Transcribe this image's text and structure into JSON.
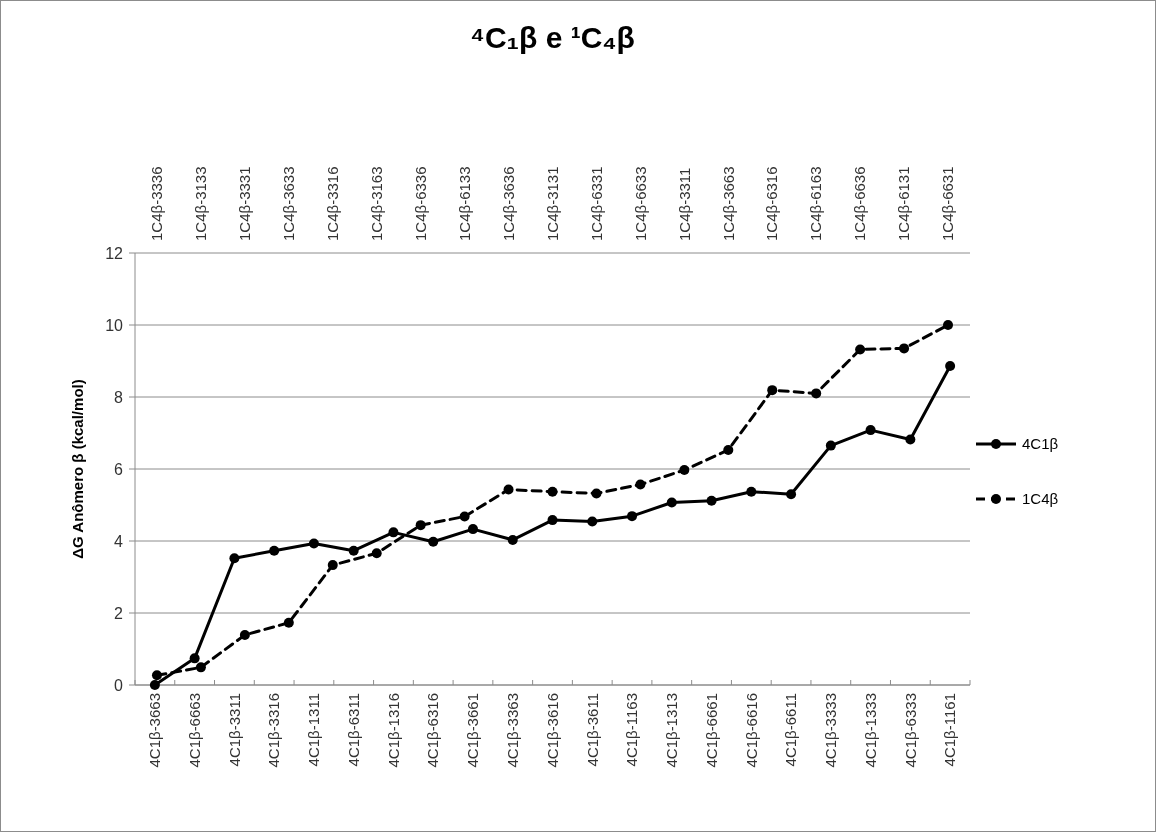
{
  "chart_data": [
    {
      "type": "line",
      "title": "⁴C₁β e ¹C₄β",
      "ylabel": "ΔG Anômero β (kcal/mol)",
      "categories": [
        "4C1β-3663",
        "4C1β-6663",
        "4C1β-3311",
        "4C1β-3316",
        "4C1β-1311",
        "4C1β-6311",
        "4C1β-1316",
        "4C1β-6316",
        "4C1β-3661",
        "4C1β-3363",
        "4C1β-3616",
        "4C1β-3611",
        "4C1β-1163",
        "4C1β-1313",
        "4C1β-6661",
        "4C1β-6616",
        "4C1β-6611",
        "4C1β-3333",
        "4C1β-1333",
        "4C1β-6333",
        "4C1β-1161"
      ],
      "series": [
        {
          "name": "4C1β",
          "color": "#000000",
          "line_style": "solid",
          "values": [
            0.0,
            0.74,
            3.52,
            3.73,
            3.93,
            3.73,
            4.24,
            3.98,
            4.33,
            4.03,
            4.58,
            4.54,
            4.69,
            5.07,
            5.12,
            5.37,
            5.3,
            6.65,
            7.08,
            6.82,
            8.86
          ]
        }
      ],
      "ylim": [
        0,
        12
      ],
      "yticks": [
        0,
        2,
        4,
        6,
        8,
        10,
        12
      ],
      "grid": "y",
      "legend": "right",
      "marker": "circle"
    },
    {
      "type": "line",
      "categories": [
        "1C4β-3336",
        "1C4β-3133",
        "1C4β-3331",
        "1C4β-3633",
        "1C4β-3316",
        "1C4β-3163",
        "1C4β-6336",
        "1C4β-6133",
        "1C4β-3636",
        "1C4β-3131",
        "1C4β-6331",
        "1C4β-6633",
        "1C4β-3311",
        "1C4β-3663",
        "1C4β-6316",
        "1C4β-6163",
        "1C4β-6636",
        "1C4β-6131",
        "1C4β-6631"
      ],
      "series": [
        {
          "name": "1C4β",
          "color": "#000000",
          "line_style": "dashed",
          "values": [
            0.27,
            0.49,
            1.39,
            1.73,
            3.33,
            3.66,
            4.44,
            4.68,
            5.43,
            5.37,
            5.32,
            5.57,
            5.97,
            6.53,
            8.19,
            8.1,
            9.32,
            9.35,
            10.0
          ]
        }
      ],
      "ylim": [
        0,
        12
      ],
      "tick_labels": "x",
      "legend": "right",
      "marker": "circle"
    }
  ]
}
